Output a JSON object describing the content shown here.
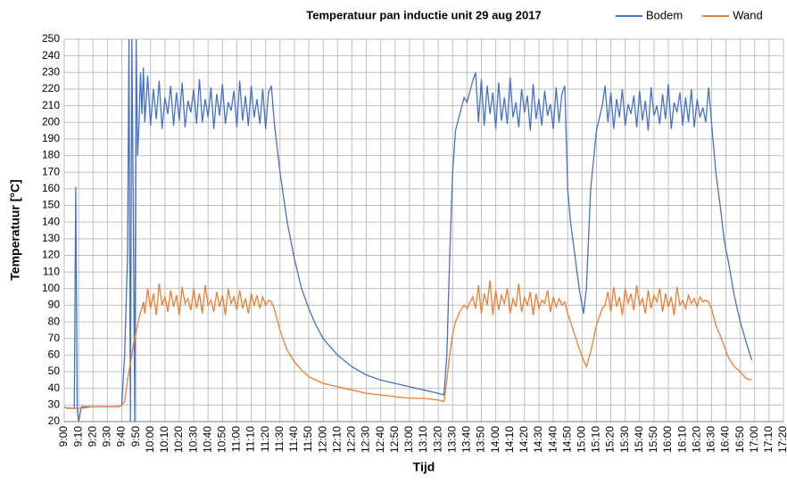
{
  "chart_data": {
    "type": "line",
    "title": "Temperatuur pan inductie unit 29 aug 2017",
    "x_label": "Tijd",
    "y_label": "Temperatuur [°C]",
    "grid": true,
    "legend": "top-right",
    "xlim": [
      0,
      500
    ],
    "ylim": [
      20,
      250
    ],
    "yticks": [
      20,
      30,
      40,
      50,
      60,
      70,
      80,
      90,
      100,
      110,
      120,
      130,
      140,
      150,
      160,
      170,
      180,
      190,
      200,
      210,
      220,
      230,
      240,
      250
    ],
    "xticks": [
      {
        "value": 0,
        "label": "9:00"
      },
      {
        "value": 10,
        "label": "9:10"
      },
      {
        "value": 20,
        "label": "9:20"
      },
      {
        "value": 30,
        "label": "9:30"
      },
      {
        "value": 40,
        "label": "9:40"
      },
      {
        "value": 50,
        "label": "9:50"
      },
      {
        "value": 60,
        "label": "10:00"
      },
      {
        "value": 70,
        "label": "10:10"
      },
      {
        "value": 80,
        "label": "10:20"
      },
      {
        "value": 90,
        "label": "10:30"
      },
      {
        "value": 100,
        "label": "10:40"
      },
      {
        "value": 110,
        "label": "10:50"
      },
      {
        "value": 120,
        "label": "11:00"
      },
      {
        "value": 130,
        "label": "11:10"
      },
      {
        "value": 140,
        "label": "11:20"
      },
      {
        "value": 150,
        "label": "11:30"
      },
      {
        "value": 160,
        "label": "11:40"
      },
      {
        "value": 170,
        "label": "11:50"
      },
      {
        "value": 180,
        "label": "12:00"
      },
      {
        "value": 190,
        "label": "12:10"
      },
      {
        "value": 200,
        "label": "12:20"
      },
      {
        "value": 210,
        "label": "12:30"
      },
      {
        "value": 220,
        "label": "12:40"
      },
      {
        "value": 230,
        "label": "12:50"
      },
      {
        "value": 240,
        "label": "13:00"
      },
      {
        "value": 250,
        "label": "13:10"
      },
      {
        "value": 260,
        "label": "13:20"
      },
      {
        "value": 270,
        "label": "13:30"
      },
      {
        "value": 280,
        "label": "13:40"
      },
      {
        "value": 290,
        "label": "13:50"
      },
      {
        "value": 300,
        "label": "14:00"
      },
      {
        "value": 310,
        "label": "14:10"
      },
      {
        "value": 320,
        "label": "14:20"
      },
      {
        "value": 330,
        "label": "14:30"
      },
      {
        "value": 340,
        "label": "14:40"
      },
      {
        "value": 350,
        "label": "14:50"
      },
      {
        "value": 360,
        "label": "15:00"
      },
      {
        "value": 370,
        "label": "15:10"
      },
      {
        "value": 380,
        "label": "15:20"
      },
      {
        "value": 390,
        "label": "15:30"
      },
      {
        "value": 400,
        "label": "15:40"
      },
      {
        "value": 410,
        "label": "15:50"
      },
      {
        "value": 420,
        "label": "16:00"
      },
      {
        "value": 430,
        "label": "16:10"
      },
      {
        "value": 440,
        "label": "16:20"
      },
      {
        "value": 450,
        "label": "16:30"
      },
      {
        "value": 460,
        "label": "16:40"
      },
      {
        "value": 470,
        "label": "16:50"
      },
      {
        "value": 480,
        "label": "17:00"
      },
      {
        "value": 490,
        "label": "17:10"
      },
      {
        "value": 500,
        "label": "17:20"
      }
    ],
    "x": [
      0,
      2,
      4,
      6,
      7,
      8,
      9,
      10,
      12,
      20,
      30,
      38,
      40,
      42,
      44,
      45,
      46,
      47,
      48,
      49,
      50,
      51,
      52,
      53,
      54,
      55,
      56,
      58,
      60,
      62,
      64,
      66,
      68,
      70,
      72,
      74,
      76,
      78,
      80,
      82,
      84,
      86,
      88,
      90,
      92,
      94,
      96,
      98,
      100,
      102,
      104,
      106,
      108,
      110,
      112,
      114,
      116,
      118,
      120,
      122,
      124,
      126,
      128,
      130,
      132,
      134,
      136,
      138,
      140,
      142,
      144,
      146,
      150,
      155,
      160,
      165,
      170,
      175,
      180,
      190,
      200,
      210,
      220,
      230,
      240,
      250,
      260,
      264,
      266,
      268,
      270,
      272,
      275,
      278,
      280,
      284,
      286,
      288,
      290,
      292,
      294,
      296,
      298,
      300,
      302,
      304,
      306,
      308,
      310,
      312,
      314,
      316,
      318,
      320,
      322,
      324,
      326,
      328,
      330,
      332,
      334,
      336,
      338,
      340,
      342,
      344,
      346,
      348,
      350,
      352,
      355,
      358,
      361,
      363,
      366,
      370,
      374,
      376,
      378,
      380,
      382,
      384,
      386,
      388,
      390,
      392,
      394,
      396,
      398,
      400,
      402,
      404,
      406,
      408,
      410,
      412,
      414,
      416,
      418,
      420,
      422,
      424,
      426,
      428,
      430,
      432,
      434,
      436,
      438,
      440,
      442,
      444,
      446,
      448,
      450,
      453,
      456,
      459,
      462,
      466,
      470,
      474,
      478
    ],
    "series": [
      {
        "name": "Bodem",
        "color": "#4472c4",
        "values": [
          29,
          28,
          28,
          28,
          28,
          161,
          28,
          20,
          29,
          29,
          29,
          29,
          30,
          60,
          120,
          250,
          20,
          250,
          150,
          20,
          250,
          180,
          200,
          230,
          205,
          233,
          200,
          228,
          198,
          220,
          202,
          225,
          196,
          215,
          205,
          222,
          198,
          218,
          201,
          224,
          197,
          213,
          206,
          220,
          199,
          226,
          200,
          214,
          203,
          221,
          196,
          217,
          204,
          223,
          199,
          212,
          207,
          219,
          197,
          225,
          201,
          216,
          198,
          222,
          203,
          214,
          199,
          220,
          196,
          218,
          222,
          200,
          170,
          140,
          118,
          100,
          88,
          78,
          70,
          60,
          53,
          48,
          45,
          43,
          41,
          39,
          37,
          36,
          60,
          120,
          170,
          195,
          205,
          215,
          212,
          225,
          230,
          200,
          226,
          198,
          222,
          205,
          218,
          196,
          224,
          201,
          215,
          199,
          227,
          203,
          212,
          197,
          220,
          206,
          216,
          195,
          223,
          202,
          214,
          198,
          219,
          204,
          211,
          196,
          221,
          200,
          217,
          222,
          160,
          140,
          120,
          100,
          85,
          100,
          160,
          195,
          210,
          222,
          200,
          218,
          196,
          214,
          203,
          220,
          198,
          211,
          205,
          216,
          197,
          219,
          201,
          213,
          195,
          221,
          204,
          210,
          199,
          217,
          202,
          223,
          196,
          212,
          206,
          218,
          198,
          215,
          200,
          220,
          197,
          214,
          203,
          209,
          200,
          221,
          200,
          170,
          150,
          128,
          115,
          95,
          80,
          68,
          57
        ]
      },
      {
        "name": "Wand",
        "color": "#ed7d31",
        "values": [
          29,
          28,
          28,
          28,
          28,
          28,
          28,
          28,
          28,
          29,
          29,
          29,
          30,
          32,
          45,
          50,
          55,
          60,
          66,
          70,
          74,
          78,
          82,
          86,
          88,
          92,
          85,
          100,
          88,
          97,
          84,
          103,
          90,
          95,
          86,
          99,
          89,
          96,
          84,
          101,
          91,
          94,
          87,
          100,
          88,
          97,
          85,
          102,
          90,
          93,
          86,
          98,
          89,
          96,
          84,
          100,
          91,
          95,
          87,
          99,
          88,
          94,
          85,
          97,
          90,
          96,
          88,
          95,
          90,
          93,
          92,
          88,
          75,
          63,
          56,
          51,
          47,
          45,
          43,
          41,
          39,
          37,
          36,
          35,
          34,
          34,
          33,
          32,
          45,
          60,
          72,
          80,
          86,
          90,
          88,
          95,
          88,
          102,
          85,
          97,
          90,
          105,
          84,
          99,
          87,
          96,
          91,
          100,
          85,
          94,
          89,
          103,
          86,
          95,
          90,
          98,
          84,
          97,
          88,
          93,
          91,
          99,
          86,
          95,
          89,
          94,
          90,
          92,
          85,
          80,
          72,
          64,
          57,
          53,
          62,
          78,
          88,
          90,
          98,
          86,
          101,
          89,
          95,
          84,
          100,
          91,
          97,
          87,
          102,
          90,
          94,
          85,
          99,
          88,
          96,
          92,
          100,
          86,
          97,
          89,
          95,
          84,
          101,
          90,
          93,
          88,
          96,
          91,
          94,
          89,
          95,
          92,
          93,
          92,
          88,
          78,
          72,
          65,
          58,
          53,
          50,
          46,
          45
        ]
      }
    ]
  }
}
